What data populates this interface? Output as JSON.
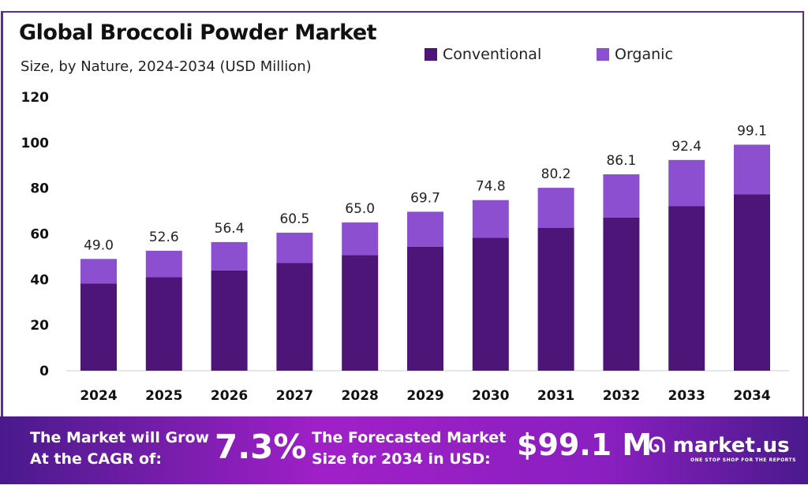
{
  "chart_data": {
    "type": "bar",
    "stacked": true,
    "title": "Global Broccoli Powder Market",
    "subtitle": "Size, by Nature, 2024-2034 (USD Million)",
    "categories": [
      "2024",
      "2025",
      "2026",
      "2027",
      "2028",
      "2029",
      "2030",
      "2031",
      "2032",
      "2033",
      "2034"
    ],
    "series": [
      {
        "name": "Conventional",
        "color": "#4e1579",
        "values": [
          38.2,
          41.0,
          44.0,
          47.2,
          50.7,
          54.4,
          58.3,
          62.6,
          67.2,
          72.1,
          77.3
        ]
      },
      {
        "name": "Organic",
        "color": "#8b4fcf",
        "values": [
          10.8,
          11.6,
          12.4,
          13.3,
          14.3,
          15.3,
          16.5,
          17.6,
          18.9,
          20.3,
          21.8
        ]
      }
    ],
    "totals": [
      "49.0",
      "52.6",
      "56.4",
      "60.5",
      "65.0",
      "69.7",
      "74.8",
      "80.2",
      "86.1",
      "92.4",
      "99.1"
    ],
    "yticks": [
      0,
      20,
      40,
      60,
      80,
      100,
      120
    ],
    "ylim": [
      0,
      120
    ],
    "grid": false,
    "legend": "top-right"
  },
  "banner": {
    "cagr_label": "The Market will Grow At the CAGR of:",
    "cagr_value": "7.3%",
    "forecast_label": "The Forecasted Market Size for 2034 in USD:",
    "forecast_value": "$99.1 M",
    "logo": "market.us",
    "tagline": "ONE STOP SHOP FOR THE REPORTS"
  }
}
